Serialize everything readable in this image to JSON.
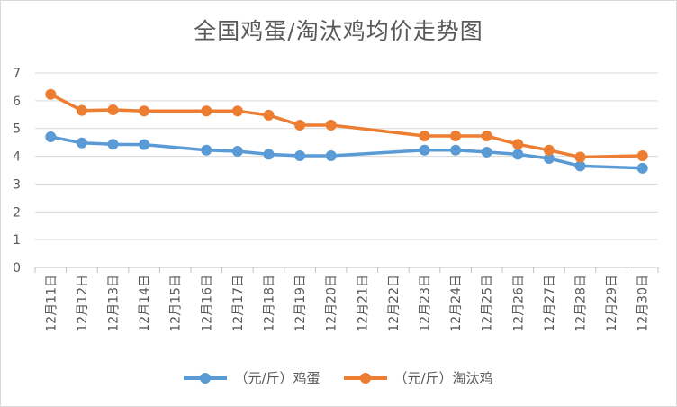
{
  "chart_data": {
    "type": "line",
    "title": "全国鸡蛋/淘汰鸡均价走势图",
    "categories": [
      "12月11日",
      "12月12日",
      "12月13日",
      "12月14日",
      "12月15日",
      "12月16日",
      "12月17日",
      "12月18日",
      "12月19日",
      "12月20日",
      "12月21日",
      "12月22日",
      "12月23日",
      "12月24日",
      "12月25日",
      "12月26日",
      "12月27日",
      "12月28日",
      "12月29日",
      "12月30日"
    ],
    "series": [
      {
        "name": "（元/斤）鸡蛋",
        "color": "#5b9bd5",
        "values": [
          4.7,
          4.48,
          4.43,
          4.42,
          null,
          4.22,
          4.18,
          4.07,
          4.02,
          4.02,
          null,
          null,
          4.22,
          4.22,
          4.15,
          4.07,
          3.92,
          3.65,
          null,
          3.57
        ]
      },
      {
        "name": "（元/斤）淘汰鸡",
        "color": "#ed7d31",
        "values": [
          6.23,
          5.65,
          5.67,
          5.63,
          null,
          5.63,
          5.63,
          5.48,
          5.12,
          5.12,
          null,
          null,
          4.73,
          4.73,
          4.73,
          4.43,
          4.22,
          3.97,
          null,
          4.02
        ]
      }
    ],
    "yticks": [
      "0",
      "1",
      "2",
      "3",
      "4",
      "5",
      "6",
      "7"
    ],
    "ylim": [
      0,
      7
    ],
    "grid": true,
    "legend_position": "bottom"
  }
}
